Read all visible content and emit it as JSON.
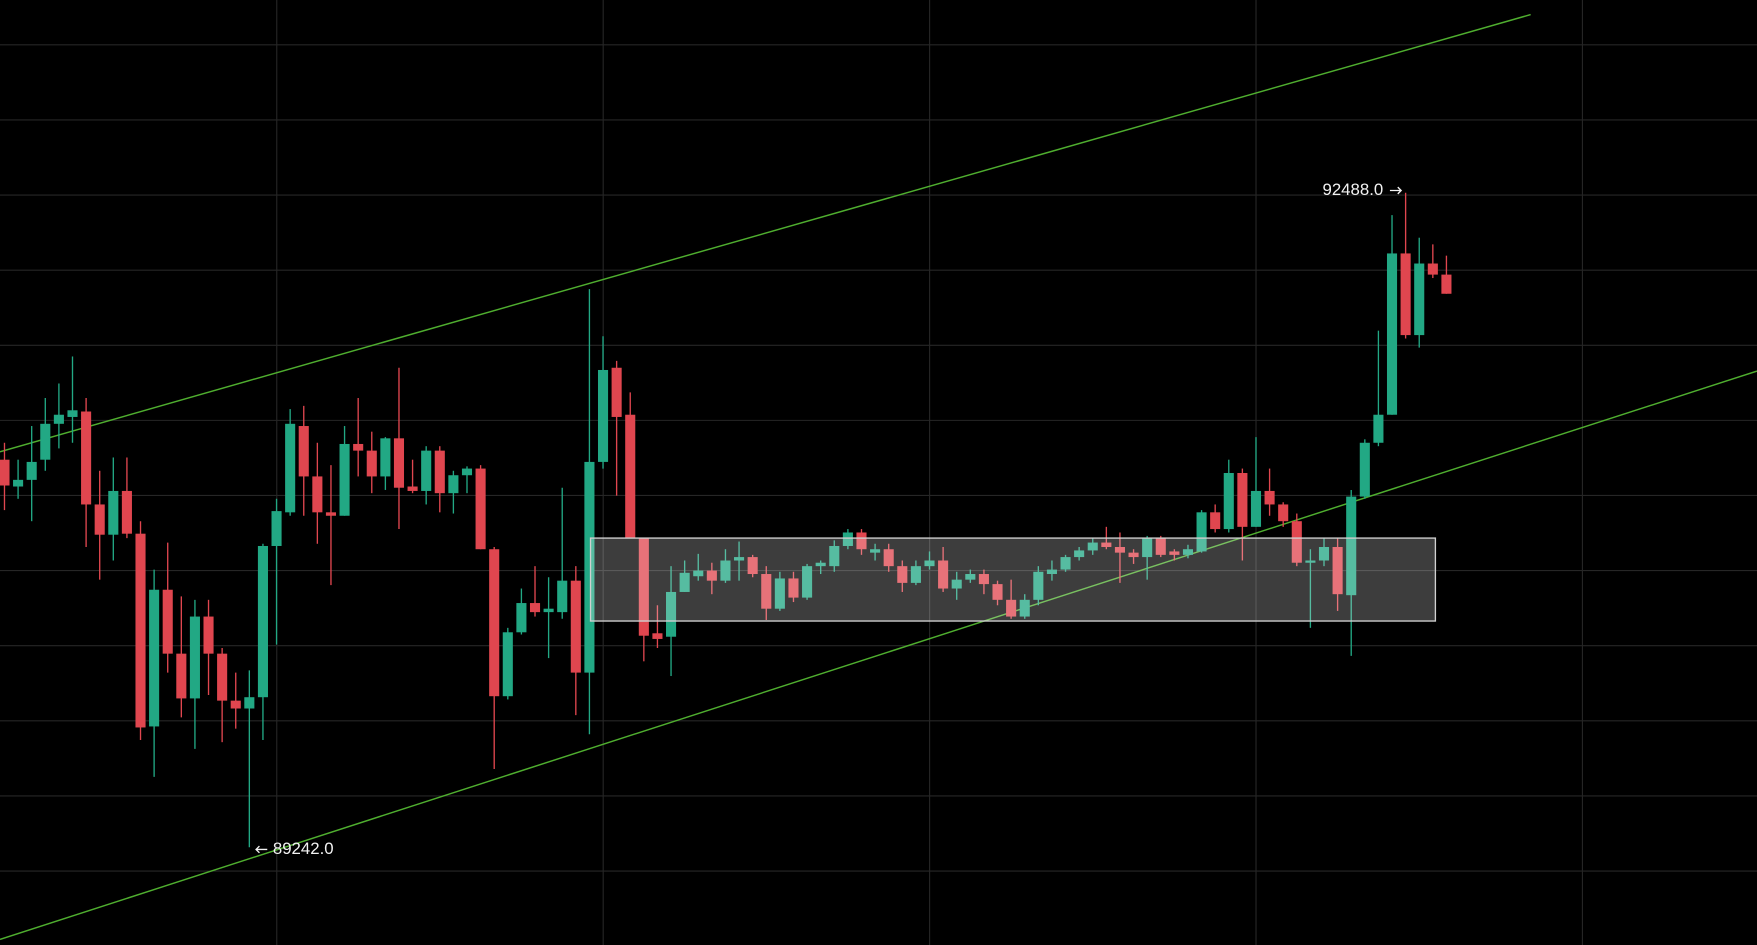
{
  "chart_data": {
    "type": "candlestick",
    "up_color": "#22a884",
    "down_color": "#e0464f",
    "grid": true,
    "ylim": [
      88757,
      93444
    ],
    "annotations": [
      {
        "text": "92488.0"
      },
      {
        "text": "89242.0"
      }
    ],
    "open": [
      91164,
      91031,
      91064,
      91164,
      91342,
      91376,
      91403,
      90942,
      90792,
      91009,
      90797,
      89841,
      90519,
      90202,
      89980,
      90386,
      90202,
      89969,
      89930,
      89986,
      90736,
      90903,
      91331,
      91081,
      90903,
      90886,
      91242,
      91209,
      91081,
      91270,
      91031,
      91009,
      91209,
      90998,
      91087,
      91120,
      90720,
      89991,
      90308,
      90453,
      90408,
      90408,
      90564,
      90108,
      91153,
      91620,
      91387,
      90775,
      90303,
      90286,
      90508,
      90586,
      90614,
      90564,
      90664,
      90681,
      90597,
      90425,
      90575,
      90480,
      90636,
      90636,
      90736,
      90803,
      90703,
      90720,
      90636,
      90553,
      90636,
      90664,
      90525,
      90569,
      90597,
      90547,
      90469,
      90386,
      90469,
      90597,
      90619,
      90681,
      90714,
      90753,
      90731,
      90703,
      90681,
      90775,
      90709,
      90692,
      90709,
      90903,
      90820,
      91098,
      90831,
      91009,
      90942,
      90859,
      90653,
      90664,
      90731,
      90492,
      90981,
      91248,
      91387,
      92187,
      91782,
      92137,
      92082
    ],
    "high": [
      91248,
      91164,
      91331,
      91470,
      91542,
      91676,
      91470,
      91109,
      91175,
      91175,
      90859,
      90619,
      90753,
      90486,
      90469,
      90469,
      90230,
      90108,
      90119,
      90747,
      90970,
      91415,
      91431,
      91248,
      91137,
      91331,
      91470,
      91303,
      91276,
      91620,
      91164,
      91231,
      91231,
      91109,
      91131,
      91137,
      90731,
      90330,
      90525,
      90636,
      90581,
      91025,
      90636,
      92010,
      91776,
      91654,
      91498,
      90775,
      90442,
      90636,
      90664,
      90697,
      90653,
      90720,
      90758,
      90692,
      90636,
      90608,
      90608,
      90647,
      90664,
      90764,
      90820,
      90820,
      90747,
      90747,
      90664,
      90664,
      90709,
      90731,
      90608,
      90619,
      90619,
      90564,
      90569,
      90497,
      90636,
      90664,
      90692,
      90731,
      90775,
      90831,
      90803,
      90720,
      90786,
      90786,
      90720,
      90742,
      90914,
      90942,
      91164,
      91120,
      91276,
      91120,
      90953,
      90897,
      90720,
      90775,
      90775,
      91014,
      91265,
      91804,
      92377,
      92488,
      92265,
      92232,
      92176
    ],
    "low": [
      90914,
      90970,
      90859,
      91109,
      91220,
      91248,
      90731,
      90569,
      90664,
      90775,
      89774,
      89591,
      90108,
      89886,
      89730,
      89997,
      89763,
      89830,
      89242,
      89774,
      90247,
      90886,
      90886,
      90747,
      90542,
      90886,
      91081,
      90998,
      91014,
      90820,
      90998,
      90942,
      90903,
      90897,
      90998,
      90720,
      89630,
      89975,
      90297,
      90386,
      90180,
      90375,
      89897,
      89802,
      91120,
      90986,
      90775,
      90164,
      90230,
      90091,
      90508,
      90564,
      90497,
      90553,
      90564,
      90581,
      90369,
      90414,
      90458,
      90469,
      90597,
      90608,
      90720,
      90692,
      90664,
      90608,
      90508,
      90542,
      90619,
      90508,
      90469,
      90553,
      90497,
      90442,
      90375,
      90375,
      90442,
      90564,
      90608,
      90664,
      90692,
      90720,
      90553,
      90647,
      90569,
      90681,
      90664,
      90675,
      90703,
      90803,
      90803,
      90664,
      90831,
      90886,
      90831,
      90636,
      90330,
      90636,
      90414,
      90191,
      90970,
      91231,
      91387,
      91765,
      91720,
      92065,
      91987
    ],
    "close": [
      91036,
      91064,
      91153,
      91342,
      91387,
      91409,
      90942,
      90792,
      91009,
      90797,
      89836,
      90519,
      90202,
      89980,
      90386,
      90202,
      89969,
      89930,
      89986,
      90736,
      90909,
      91342,
      91081,
      90903,
      90886,
      91242,
      91209,
      91081,
      91270,
      91025,
      91009,
      91209,
      90998,
      91087,
      91120,
      90720,
      89991,
      90308,
      90453,
      90408,
      90425,
      90564,
      90108,
      91153,
      91609,
      91376,
      90775,
      90291,
      90275,
      90508,
      90603,
      90614,
      90564,
      90664,
      90681,
      90597,
      90425,
      90575,
      90480,
      90636,
      90653,
      90736,
      90803,
      90720,
      90720,
      90636,
      90553,
      90636,
      90664,
      90525,
      90569,
      90597,
      90547,
      90469,
      90386,
      90469,
      90608,
      90619,
      90681,
      90714,
      90753,
      90731,
      90703,
      90681,
      90775,
      90692,
      90692,
      90720,
      90903,
      90820,
      91098,
      90831,
      91009,
      90942,
      90859,
      90653,
      90664,
      90731,
      90497,
      90981,
      91248,
      91387,
      92187,
      91782,
      92137,
      92082,
      91987
    ]
  }
}
